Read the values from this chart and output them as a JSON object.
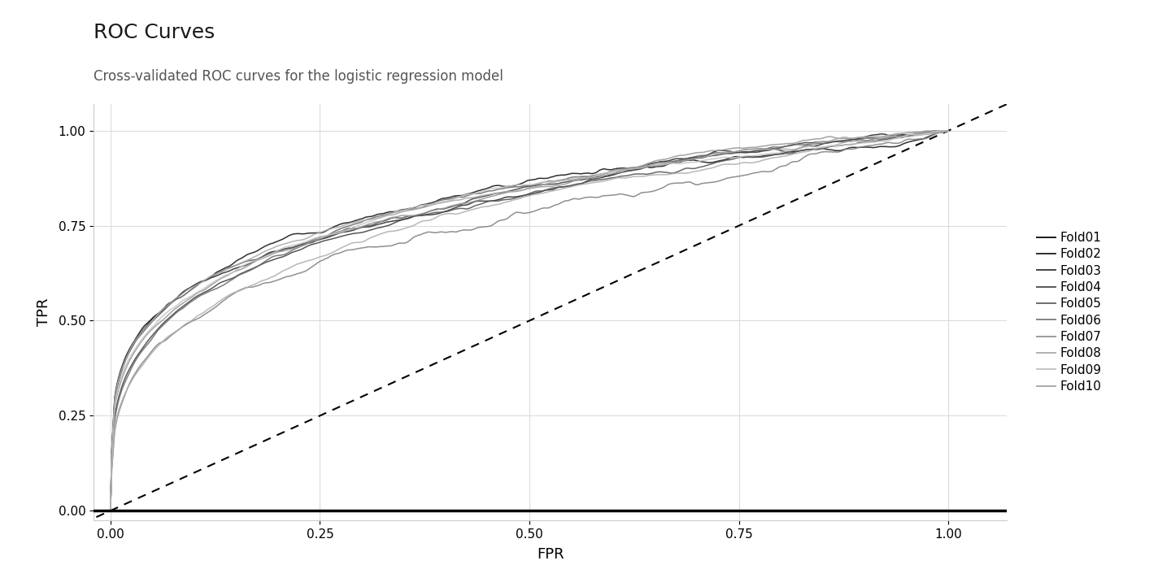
{
  "title": "ROC Curves",
  "subtitle": "Cross-validated ROC curves for the logistic regression model",
  "xlabel": "FPR",
  "ylabel": "TPR",
  "xlim": [
    -0.02,
    1.07
  ],
  "ylim": [
    -0.025,
    1.07
  ],
  "xticks": [
    0.0,
    0.25,
    0.5,
    0.75,
    1.0
  ],
  "yticks": [
    0.0,
    0.25,
    0.5,
    0.75,
    1.0
  ],
  "folds": [
    "Fold01",
    "Fold02",
    "Fold03",
    "Fold04",
    "Fold05",
    "Fold06",
    "Fold07",
    "Fold08",
    "Fold09",
    "Fold10"
  ],
  "fold_colors": [
    "#1a1a1a",
    "#2e2e2e",
    "#444444",
    "#585858",
    "#6e6e6e",
    "#848484",
    "#9a9a9a",
    "#b0b0b0",
    "#c6c6c6",
    "#aaaaaa"
  ],
  "background_color": "#ffffff",
  "grid_color": "#d8d8d8",
  "title_fontsize": 18,
  "subtitle_fontsize": 12,
  "axis_label_fontsize": 13,
  "tick_fontsize": 11,
  "legend_fontsize": 11
}
